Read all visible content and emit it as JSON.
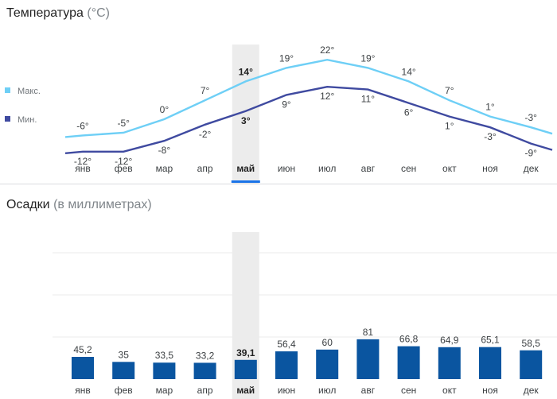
{
  "colors": {
    "max_line": "#6ecff6",
    "min_line": "#3f4aa0",
    "bar": "#0a55a0",
    "highlight": "#ececec",
    "selected_tab": "#1a73e8"
  },
  "temperature": {
    "title": "Температура",
    "unit": "(°C)",
    "legend": {
      "max": "Макс.",
      "min": "Мин."
    }
  },
  "precipitation": {
    "title": "Осадки",
    "unit": "(в миллиметрах)"
  },
  "selected_month_index": 4,
  "chart_data": [
    {
      "type": "line",
      "title": "Температура (°C)",
      "categories": [
        "янв",
        "фев",
        "мар",
        "апр",
        "май",
        "июн",
        "июл",
        "авг",
        "сен",
        "окт",
        "ноя",
        "дек"
      ],
      "series": [
        {
          "name": "Макс.",
          "values": [
            -6,
            -5,
            0,
            7,
            14,
            19,
            22,
            19,
            14,
            7,
            1,
            -3
          ],
          "labels": [
            "-6°",
            "-5°",
            "0°",
            "7°",
            "14°",
            "19°",
            "22°",
            "19°",
            "14°",
            "7°",
            "1°",
            "-3°"
          ]
        },
        {
          "name": "Мин.",
          "values": [
            -12,
            -12,
            -8,
            -2,
            3,
            9,
            12,
            11,
            6,
            1,
            -3,
            -9
          ],
          "labels": [
            "-12°",
            "-12°",
            "-8°",
            "-2°",
            "3°",
            "9°",
            "12°",
            "11°",
            "6°",
            "1°",
            "-3°",
            "-9°"
          ]
        }
      ],
      "legend_position": "left",
      "grid": false
    },
    {
      "type": "bar",
      "title": "Осадки (в миллиметрах)",
      "categories": [
        "янв",
        "фев",
        "мар",
        "апр",
        "май",
        "июн",
        "июл",
        "авг",
        "сен",
        "окт",
        "ноя",
        "дек"
      ],
      "values": [
        45.2,
        35,
        33.5,
        33.2,
        39.1,
        56.4,
        60,
        81,
        66.8,
        64.9,
        65.1,
        58.5
      ],
      "labels": [
        "45,2",
        "35",
        "33,5",
        "33,2",
        "39,1",
        "56,4",
        "60",
        "81",
        "66,8",
        "64,9",
        "65,1",
        "58,5"
      ],
      "ylim": [
        0,
        400
      ],
      "grid": true
    }
  ]
}
